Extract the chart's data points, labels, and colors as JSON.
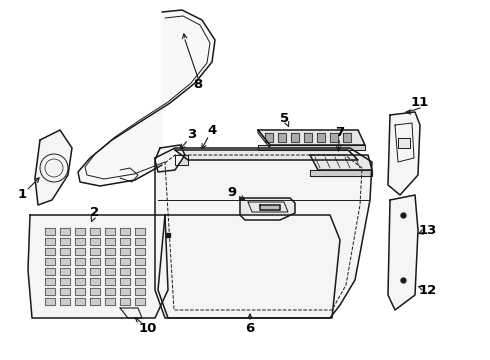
{
  "background_color": "#ffffff",
  "line_color": "#1a1a1a",
  "label_color": "#000000",
  "fig_width": 4.9,
  "fig_height": 3.6,
  "dpi": 100,
  "lw_main": 1.1,
  "lw_thin": 0.7,
  "font_size": 9.5
}
